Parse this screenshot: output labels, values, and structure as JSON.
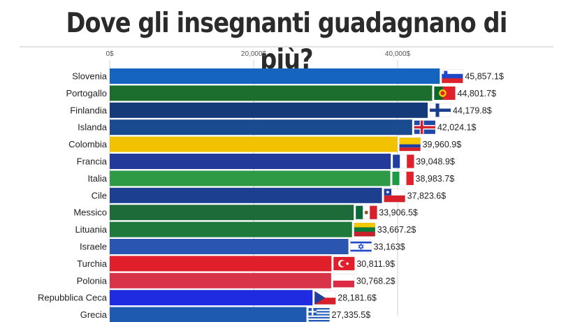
{
  "title": "Dove gli insegnanti guadagnano di più?",
  "chart_data": {
    "type": "bar",
    "orientation": "horizontal",
    "title": "Dove gli insegnanti guadagnano di più?",
    "xlabel": "",
    "ylabel": "",
    "xlim": [
      0,
      45000
    ],
    "x_ticks": [
      0,
      20000,
      40000
    ],
    "x_tick_labels": [
      "0$",
      "20,000$",
      "40,000$"
    ],
    "grid": true,
    "categories": [
      "Slovenia",
      "Portogallo",
      "Finlandia",
      "Islanda",
      "Colombia",
      "Francia",
      "Italia",
      "Cile",
      "Messico",
      "Lituania",
      "Israele",
      "Turchia",
      "Polonia",
      "Repubblica Ceca",
      "Grecia"
    ],
    "values": [
      45857.1,
      44801.7,
      44179.8,
      42024.1,
      39960.9,
      39048.9,
      38983.7,
      37823.6,
      33906.5,
      33667.2,
      33163,
      30811.9,
      30768.2,
      28181.6,
      27335.5
    ],
    "value_labels": [
      "45,857.1$",
      "44,801.7$",
      "44,179.8$",
      "42,024.1$",
      "39,960.9$",
      "39,048.9$",
      "38,983.7$",
      "37,823.6$",
      "33,906.5$",
      "33,667.2$",
      "33,163$",
      "30,811.9$",
      "30,768.2$",
      "28,181.6$",
      "27,335.5$"
    ],
    "bar_colors": [
      "#1565C0",
      "#1B6E2E",
      "#153A7A",
      "#1A4A8F",
      "#F2C200",
      "#223A9A",
      "#2E9A45",
      "#1D3F8F",
      "#1E6B3A",
      "#1E7A3A",
      "#2A55B0",
      "#E01F2B",
      "#D9334A",
      "#1F2BE0",
      "#1E5AB0"
    ],
    "flags": [
      "slovenia-flag",
      "portugal-flag",
      "finland-flag",
      "iceland-flag",
      "colombia-flag",
      "france-flag",
      "italy-flag",
      "chile-flag",
      "mexico-flag",
      "lithuania-flag",
      "israel-flag",
      "turkey-flag",
      "poland-flag",
      "czech-flag",
      "greece-flag"
    ]
  }
}
